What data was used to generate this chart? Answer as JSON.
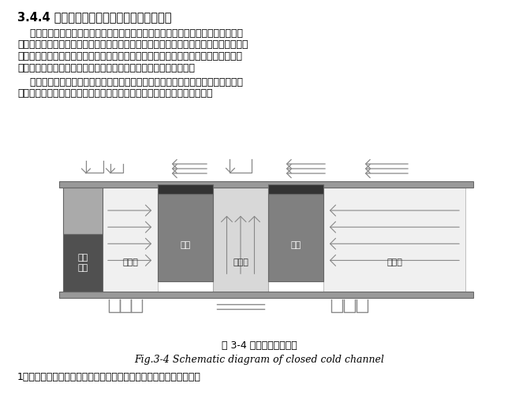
{
  "title": "3.4.4 电子信息机房温度和气流组织模拟分析",
  "para1_lines": [
    "    在电子信息系统设备的元器件运行环境要求越来越高的情况下，在电子信息机房采",
    "用精确送风的基础上，采用冷热通道封闭的措施，可以实现较为良好的送回风气流组织，",
    "能够更好的保证低温送风和高回风温度，提高了空调系统的制冷效率，避免了气流组织",
    "短路而造成的冷量损失，电子信息系统的机柜可以得到更好的冷却。"
  ],
  "para2_lines": [
    "    同时该方案措施容易实施，能够有效的解决电子信息机房的冷却问题，避免了机柜",
    "的局部过热，在地铁指挥控制中心的暖通空调系统中，得到了广泛的应用。"
  ],
  "caption_cn": "图 3-4 冷通道封闭示意图",
  "caption_en": "Fig.3-4 Schematic diagram of closed cold channel",
  "footer": "1．根据选用的物理模型，冷通道封闭前后，机柜布置图的显示如下：",
  "label_ac": "机房\n空调",
  "label_cold_l": "冷通道",
  "label_cab_l": "机柜",
  "label_hot": "热通道",
  "label_cab_r": "机柜",
  "label_cold_r": "冷通道",
  "color_ceil": "#999999",
  "color_floor": "#999999",
  "color_ac_top": "#aaaaaa",
  "color_ac_bot": "#505050",
  "color_cold": "#f0f0f0",
  "color_cab": "#808080",
  "color_cab_top": "#333333",
  "color_hot": "#d8d8d8",
  "color_arrow": "#888888",
  "color_border": "#666666"
}
